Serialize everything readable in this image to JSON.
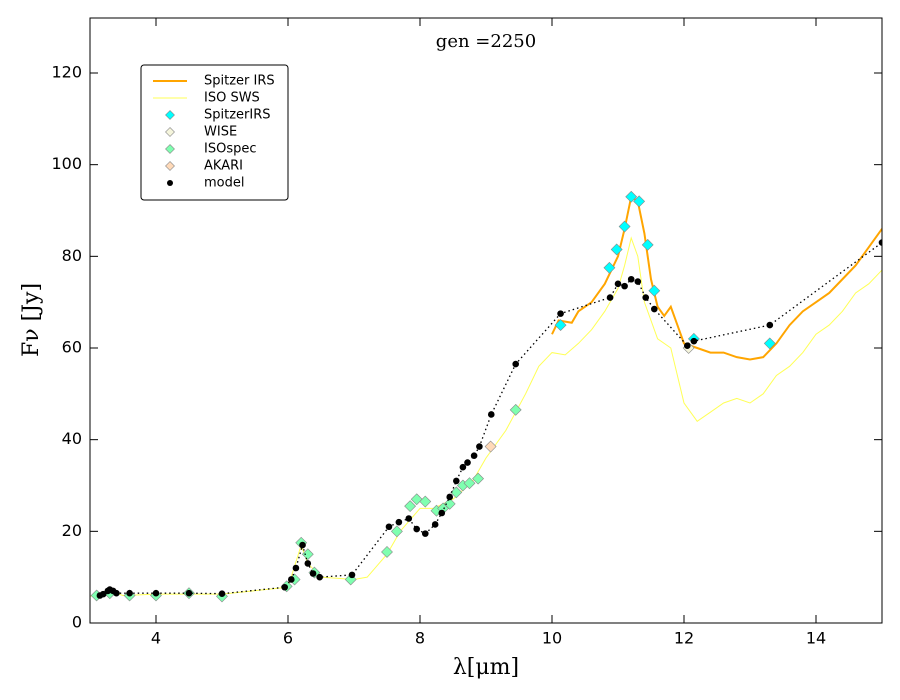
{
  "chart_data": {
    "type": "sed",
    "title": "gen =2250",
    "xlabel": "λ[μm]",
    "ylabel": "Fν [Jy]",
    "xlim": [
      3,
      15
    ],
    "xticks": [
      4,
      6,
      8,
      10,
      12,
      14
    ],
    "ylim": [
      0,
      132
    ],
    "yticks": [
      0,
      20,
      40,
      60,
      80,
      100,
      120
    ],
    "legend": "upper left",
    "series": [
      {
        "name": "Spitzer IRS",
        "color": "#ffa500",
        "style": "line",
        "linestyle": "solid",
        "x": [
          10.0,
          10.1,
          10.3,
          10.4,
          10.6,
          10.8,
          10.9,
          11.0,
          11.1,
          11.2,
          11.3,
          11.4,
          11.5,
          11.6,
          11.7,
          11.8,
          11.9,
          12.0,
          12.2,
          12.4,
          12.6,
          12.8,
          13.0,
          13.2,
          13.4,
          13.6,
          13.8,
          14.0,
          14.2,
          14.4,
          14.6,
          14.8,
          15.0
        ],
        "values": [
          63,
          66,
          65.5,
          68,
          70,
          74,
          77,
          80,
          86,
          93,
          92,
          85,
          75,
          69,
          67,
          69,
          65,
          61,
          60,
          59,
          59,
          58,
          57.5,
          58,
          61,
          65,
          68,
          70,
          72,
          75,
          78,
          82,
          86
        ]
      },
      {
        "name": "ISO SWS",
        "color": "#ffff55",
        "style": "line",
        "linestyle": "solid",
        "x": [
          3.0,
          3.3,
          3.5,
          4.0,
          5.0,
          6.0,
          6.2,
          6.3,
          6.5,
          7.0,
          7.2,
          7.5,
          7.7,
          8.0,
          8.2,
          8.5,
          8.8,
          9.0,
          9.3,
          9.6,
          9.8,
          10.0,
          10.2,
          10.4,
          10.6,
          10.8,
          11.0,
          11.1,
          11.2,
          11.3,
          11.4,
          11.6,
          11.8,
          12.0,
          12.2,
          12.4,
          12.6,
          12.8,
          13.0,
          13.2,
          13.4,
          13.6,
          13.8,
          14.0,
          14.2,
          14.4,
          14.6,
          14.8,
          15.0
        ],
        "values": [
          5.8,
          7,
          6,
          6.3,
          6.3,
          7.8,
          17,
          13,
          10,
          9.5,
          10,
          15,
          20,
          25,
          25,
          27,
          31,
          36,
          42,
          50,
          56,
          59,
          58.5,
          61,
          64,
          68,
          73,
          78,
          84,
          80,
          70,
          62,
          60,
          48,
          44,
          46,
          48,
          49,
          48,
          50,
          54,
          56,
          59,
          63,
          65,
          68,
          72,
          74,
          77
        ]
      },
      {
        "name": "SpitzerIRS",
        "color": "#00ffff",
        "style": "marker",
        "marker": "diamond",
        "x": [
          10.13,
          10.87,
          10.98,
          11.1,
          11.2,
          11.32,
          11.45,
          11.55,
          12.15,
          13.3
        ],
        "values": [
          65,
          77.5,
          81.5,
          86.5,
          93,
          92,
          82.5,
          72.5,
          62,
          61
        ]
      },
      {
        "name": "WISE",
        "color": "#f5f5dc",
        "style": "marker",
        "marker": "diamond",
        "x": [
          12.07
        ],
        "values": [
          60
        ]
      },
      {
        "name": "ISOspec",
        "color": "#7fffb0",
        "style": "marker",
        "marker": "diamond",
        "x": [
          3.1,
          3.3,
          3.6,
          4.0,
          4.5,
          5.0,
          5.98,
          6.1,
          6.2,
          6.3,
          6.4,
          6.95,
          7.5,
          7.65,
          7.85,
          7.95,
          8.08,
          8.25,
          8.35,
          8.45,
          8.55,
          8.65,
          8.75,
          8.88,
          9.45
        ],
        "values": [
          6,
          6.5,
          6,
          6,
          6.5,
          5.8,
          8,
          9.5,
          17.5,
          15,
          11,
          9.5,
          15.5,
          20,
          25.5,
          27,
          26.5,
          24.5,
          25,
          26,
          28.5,
          30,
          30.5,
          31.5,
          46.5
        ]
      },
      {
        "name": "AKARI",
        "color": "#ffdab9",
        "style": "marker",
        "marker": "diamond",
        "x": [
          9.07
        ],
        "values": [
          38.5
        ]
      },
      {
        "name": "model",
        "color": "#000000",
        "style": "marker",
        "marker": "dot",
        "linestyle": "dotted",
        "x": [
          3.15,
          3.2,
          3.27,
          3.3,
          3.35,
          3.4,
          3.6,
          4.0,
          4.5,
          5.0,
          5.95,
          6.05,
          6.12,
          6.22,
          6.3,
          6.38,
          6.48,
          6.97,
          7.53,
          7.68,
          7.83,
          7.95,
          8.08,
          8.23,
          8.33,
          8.45,
          8.55,
          8.65,
          8.72,
          8.82,
          8.9,
          9.08,
          9.45,
          10.13,
          10.88,
          11.0,
          11.1,
          11.2,
          11.3,
          11.42,
          11.55,
          12.05,
          12.15,
          13.3,
          15.0
        ],
        "values": [
          6,
          6.3,
          7,
          7.3,
          7,
          6.5,
          6.5,
          6.5,
          6.5,
          6.4,
          7.8,
          9.5,
          12,
          17,
          13,
          10.8,
          10,
          10.5,
          21,
          22,
          22.8,
          20.5,
          19.5,
          21.5,
          24,
          27.5,
          31,
          34,
          35,
          36.5,
          38.5,
          45.5,
          56.5,
          67.5,
          71,
          74,
          73.5,
          75,
          74.5,
          71,
          68.5,
          60.5,
          61.5,
          65,
          83
        ]
      }
    ]
  }
}
